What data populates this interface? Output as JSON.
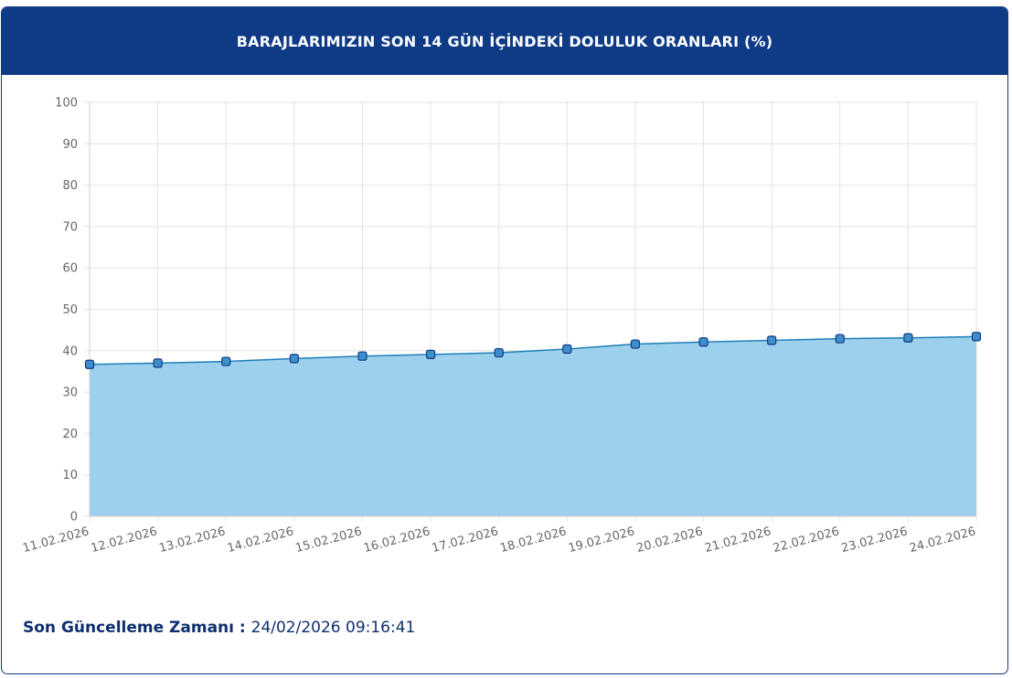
{
  "header": {
    "title": "BARAJLARIMIZIN SON 14 GÜN İÇİNDEKİ DOLULUK ORANLARI (%)"
  },
  "footer": {
    "label": "Son Güncelleme Zamanı",
    "separator": " : ",
    "value": "24/02/2026 09:16:41"
  },
  "colors": {
    "header_bg": "#0e3a86",
    "line": "#1f7fb8",
    "fill": "#9dd0ec",
    "point_fill": "#3d8fc9",
    "point_stroke": "#0e3a86"
  },
  "chart_data": {
    "type": "area",
    "title": "BARAJLARIMIZIN SON 14 GÜN İÇİNDEKİ DOLULUK ORANLARI (%)",
    "xlabel": "",
    "ylabel": "",
    "ylim": [
      0,
      100
    ],
    "yticks": [
      0,
      10,
      20,
      30,
      40,
      50,
      60,
      70,
      80,
      90,
      100
    ],
    "grid": true,
    "legend": "none",
    "categories": [
      "11.02.2026",
      "12.02.2026",
      "13.02.2026",
      "14.02.2026",
      "15.02.2026",
      "16.02.2026",
      "17.02.2026",
      "18.02.2026",
      "19.02.2026",
      "20.02.2026",
      "21.02.2026",
      "22.02.2026",
      "23.02.2026",
      "24.02.2026"
    ],
    "series": [
      {
        "values": [
          36.7,
          37.0,
          37.4,
          38.1,
          38.7,
          39.1,
          39.5,
          40.4,
          41.6,
          42.1,
          42.5,
          42.9,
          43.1,
          43.4
        ]
      }
    ]
  }
}
